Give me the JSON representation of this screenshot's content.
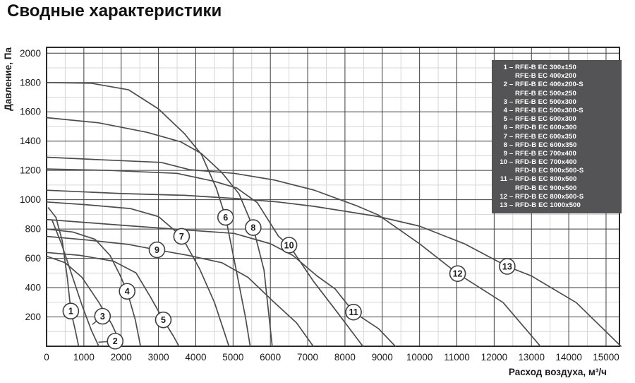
{
  "title": "Сводные характеристики",
  "colors": {
    "curve": "#4d4d4d",
    "grid_major": "#3d3d3d",
    "grid_minor": "#d6d6d6",
    "plot_border": "#2b2b2b",
    "legend_bg": "#545456",
    "legend_text": "#ffffff",
    "text": "#1a1a1a",
    "label_circle_fill": "#ffffff",
    "label_circle_stroke": "#3f3f3f"
  },
  "legend": {
    "items": [
      {
        "num": "1",
        "dash": "–",
        "name": "RFE-B EC 300x150"
      },
      {
        "num": "",
        "dash": "",
        "name": "RFE-B EC 400x200"
      },
      {
        "num": "2",
        "dash": "–",
        "name": "RFE-B EC 400x200-S"
      },
      {
        "num": "",
        "dash": "",
        "name": "RFE-B EC 500x250"
      },
      {
        "num": "3",
        "dash": "–",
        "name": "RFE-B EC 500x300"
      },
      {
        "num": "4",
        "dash": "–",
        "name": "RFE-B EC 500x300-S"
      },
      {
        "num": "5",
        "dash": "–",
        "name": "RFE-B EC 600x300"
      },
      {
        "num": "6",
        "dash": "–",
        "name": "RFD-B EC 600x300"
      },
      {
        "num": "7",
        "dash": "–",
        "name": "RFE-B EC 600x350"
      },
      {
        "num": "8",
        "dash": "–",
        "name": "RFD-B EC 600x350"
      },
      {
        "num": "9",
        "dash": "–",
        "name": "RFE-B EC 700x400"
      },
      {
        "num": "10",
        "dash": "–",
        "name": "RFD-B EC 700x400"
      },
      {
        "num": "",
        "dash": "",
        "name": "RFD-B EC 900x500-S"
      },
      {
        "num": "11",
        "dash": "–",
        "name": "RFD-B EC 800x500"
      },
      {
        "num": "",
        "dash": "",
        "name": "RFD-B EC 900x500"
      },
      {
        "num": "12",
        "dash": "–",
        "name": "RFD-B EC 800x500-S"
      },
      {
        "num": "13",
        "dash": "–",
        "name": "RFD-B EC 1000x500"
      }
    ]
  },
  "chart_data": {
    "type": "line",
    "title": "Сводные характеристики",
    "xlabel": "Расход воздуха, м³/ч",
    "ylabel": "Давление, Па",
    "xlim": [
      0,
      15360
    ],
    "ylim": [
      0,
      2040
    ],
    "x_ticks": [
      0,
      1000,
      2000,
      3000,
      4000,
      5000,
      6000,
      7000,
      8000,
      9000,
      10000,
      11000,
      12000,
      13000,
      14000,
      15000
    ],
    "y_ticks": [
      200,
      400,
      600,
      800,
      1000,
      1200,
      1400,
      1600,
      1800,
      2000
    ],
    "x_minor_step": 500,
    "y_minor_step": 100,
    "grid": true,
    "legend_position": "top-right",
    "series": [
      {
        "id": "1",
        "name": "RFE-B EC 300x150, RFE-B EC 400x200",
        "points": [
          [
            50,
            945
          ],
          [
            250,
            880
          ],
          [
            420,
            720
          ],
          [
            560,
            460
          ],
          [
            650,
            240
          ],
          [
            760,
            120
          ],
          [
            860,
            0
          ]
        ],
        "label_at": [
          650,
          240
        ]
      },
      {
        "id": "2",
        "name": "RFE-B EC 400x200-S, RFE-B EC 500x250",
        "points": [
          [
            150,
            860
          ],
          [
            400,
            700
          ],
          [
            700,
            470
          ],
          [
            950,
            280
          ],
          [
            1200,
            110
          ],
          [
            1400,
            0
          ]
        ],
        "label_at": [
          1840,
          35
        ],
        "tick_from": [
          1390,
          28
        ]
      },
      {
        "id": "3",
        "name": "RFE-B EC 500x300",
        "points": [
          [
            0,
            615
          ],
          [
            500,
            570
          ],
          [
            950,
            470
          ],
          [
            1400,
            300
          ],
          [
            1750,
            150
          ],
          [
            2020,
            0
          ]
        ],
        "label_at": [
          1500,
          205
        ],
        "tick_from": [
          1225,
          148
        ]
      },
      {
        "id": "4",
        "name": "RFE-B EC 500x300-S",
        "points": [
          [
            0,
            800
          ],
          [
            700,
            780
          ],
          [
            1300,
            730
          ],
          [
            1700,
            620
          ],
          [
            1960,
            490
          ],
          [
            2160,
            375
          ],
          [
            2380,
            180
          ],
          [
            2520,
            0
          ]
        ],
        "label_at": [
          2160,
          375
        ]
      },
      {
        "id": "5",
        "name": "RFE-B EC 600x300",
        "points": [
          [
            0,
            640
          ],
          [
            900,
            620
          ],
          [
            1800,
            580
          ],
          [
            2400,
            500
          ],
          [
            2800,
            330
          ],
          [
            3130,
            180
          ],
          [
            3400,
            70
          ],
          [
            3550,
            0
          ]
        ],
        "label_at": [
          3130,
          180
        ]
      },
      {
        "id": "6",
        "name": "RFD-B EC 600x300",
        "points": [
          [
            0,
            1800
          ],
          [
            1200,
            1795
          ],
          [
            2200,
            1750
          ],
          [
            3000,
            1620
          ],
          [
            3700,
            1450
          ],
          [
            4150,
            1310
          ],
          [
            4550,
            1080
          ],
          [
            4800,
            880
          ],
          [
            5100,
            500
          ],
          [
            5330,
            200
          ],
          [
            5460,
            0
          ]
        ],
        "label_at": [
          4800,
          880
        ]
      },
      {
        "id": "7",
        "name": "RFE-B EC 600x350",
        "points": [
          [
            0,
            985
          ],
          [
            1100,
            965
          ],
          [
            2240,
            940
          ],
          [
            3000,
            885
          ],
          [
            3620,
            750
          ],
          [
            4100,
            530
          ],
          [
            4500,
            300
          ],
          [
            4890,
            0
          ]
        ],
        "label_at": [
          3620,
          750
        ]
      },
      {
        "id": "8",
        "name": "RFD-B EC 600x350",
        "points": [
          [
            0,
            1560
          ],
          [
            1400,
            1525
          ],
          [
            2700,
            1460
          ],
          [
            3600,
            1395
          ],
          [
            4150,
            1315
          ],
          [
            4700,
            1185
          ],
          [
            5160,
            1040
          ],
          [
            5540,
            810
          ],
          [
            5830,
            520
          ],
          [
            6050,
            0
          ]
        ],
        "label_at": [
          5540,
          810
        ]
      },
      {
        "id": "9",
        "name": "RFE-B EC 700x400",
        "points": [
          [
            0,
            750
          ],
          [
            1100,
            725
          ],
          [
            2200,
            695
          ],
          [
            2960,
            658
          ],
          [
            3800,
            620
          ],
          [
            4700,
            570
          ],
          [
            5400,
            470
          ],
          [
            6100,
            300
          ],
          [
            6700,
            160
          ],
          [
            7150,
            0
          ]
        ],
        "label_at": [
          2960,
          658
        ]
      },
      {
        "id": "10",
        "name": "RFD-B EC 700x400, RFD-B EC 900x500-S",
        "points": [
          [
            0,
            1210
          ],
          [
            1700,
            1200
          ],
          [
            3500,
            1180
          ],
          [
            4500,
            1125
          ],
          [
            5100,
            1080
          ],
          [
            5650,
            980
          ],
          [
            6220,
            750
          ],
          [
            6500,
            690
          ],
          [
            7150,
            445
          ],
          [
            7800,
            230
          ],
          [
            8480,
            0
          ]
        ],
        "label_at": [
          6500,
          690
        ]
      },
      {
        "id": "11",
        "name": "RFD-B EC 800x500, RFD-B EC 900x500",
        "points": [
          [
            0,
            865
          ],
          [
            2050,
            825
          ],
          [
            3500,
            798
          ],
          [
            5030,
            770
          ],
          [
            6000,
            700
          ],
          [
            6600,
            620
          ],
          [
            7250,
            480
          ],
          [
            7740,
            390
          ],
          [
            8230,
            233
          ],
          [
            8900,
            120
          ],
          [
            9350,
            0
          ]
        ],
        "label_at": [
          8230,
          233
        ]
      },
      {
        "id": "12",
        "name": "RFD-B EC 800x500-S",
        "points": [
          [
            0,
            1290
          ],
          [
            1500,
            1272
          ],
          [
            3070,
            1255
          ],
          [
            3830,
            1205
          ],
          [
            5030,
            1180
          ],
          [
            6100,
            1135
          ],
          [
            7170,
            1066
          ],
          [
            8300,
            960
          ],
          [
            8900,
            895
          ],
          [
            10000,
            700
          ],
          [
            11020,
            496
          ],
          [
            12240,
            298
          ],
          [
            13240,
            0
          ]
        ],
        "label_at": [
          11020,
          496
        ]
      },
      {
        "id": "13",
        "name": "RFD-B EC 1000x500",
        "points": [
          [
            0,
            1065
          ],
          [
            2000,
            1042
          ],
          [
            3700,
            1030
          ],
          [
            5080,
            1008
          ],
          [
            6200,
            985
          ],
          [
            7170,
            955
          ],
          [
            8900,
            885
          ],
          [
            10000,
            820
          ],
          [
            11200,
            700
          ],
          [
            12350,
            545
          ],
          [
            13000,
            480
          ],
          [
            14200,
            298
          ],
          [
            15400,
            0
          ]
        ],
        "label_at": [
          12350,
          545
        ]
      }
    ]
  }
}
